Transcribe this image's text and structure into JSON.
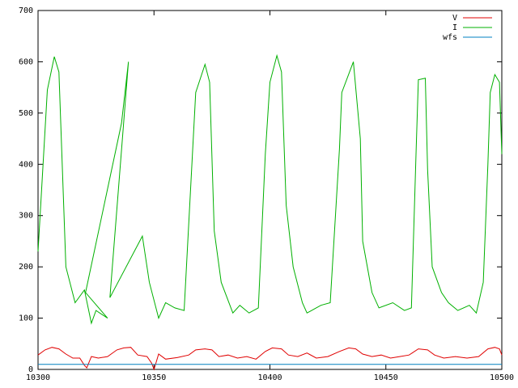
{
  "chart_data": {
    "type": "line",
    "xlim": [
      10300,
      10500
    ],
    "xticks": [
      10300,
      10350,
      10400,
      10450,
      10500
    ],
    "ylim": [
      0,
      700
    ],
    "yticks": [
      0,
      100,
      200,
      300,
      400,
      500,
      600,
      700
    ],
    "legend": "upper right",
    "series": [
      {
        "name": "V",
        "color": "#e00000",
        "x": [
          10300,
          10303,
          10306,
          10309,
          10312,
          10315,
          10318,
          10320,
          10321,
          10323,
          10326,
          10330,
          10334,
          10337,
          10340,
          10343,
          10347,
          10349,
          10350,
          10352,
          10355,
          10360,
          10365,
          10368,
          10372,
          10375,
          10378,
          10382,
          10386,
          10390,
          10394,
          10398,
          10401,
          10405,
          10408,
          10412,
          10416,
          10420,
          10425,
          10430,
          10434,
          10437,
          10440,
          10444,
          10448,
          10452,
          10456,
          10460,
          10464,
          10468,
          10471,
          10475,
          10480,
          10485,
          10490,
          10494,
          10497,
          10499,
          10500
        ],
        "values": [
          28,
          38,
          43,
          40,
          30,
          22,
          22,
          8,
          3,
          25,
          22,
          25,
          38,
          42,
          43,
          28,
          25,
          12,
          0,
          30,
          20,
          23,
          28,
          38,
          40,
          38,
          25,
          28,
          22,
          25,
          20,
          35,
          42,
          40,
          28,
          25,
          32,
          22,
          25,
          35,
          42,
          40,
          30,
          25,
          28,
          22,
          25,
          28,
          40,
          38,
          28,
          22,
          25,
          22,
          25,
          40,
          43,
          40,
          28
        ]
      },
      {
        "name": "I",
        "color": "#00b000",
        "x": [
          10300,
          10304,
          10307,
          10309,
          10312,
          10316,
          10320,
          10323,
          10325,
          10330,
          10320.5,
          10336,
          10339,
          10331,
          10345,
          10348,
          10352,
          10355,
          10359,
          10363,
          10368,
          10372,
          10374,
          10376,
          10379,
          10384,
          10387,
          10391,
          10395,
          10398,
          10400,
          10403,
          10405,
          10407,
          10410,
          10414,
          10416,
          10422,
          10426,
          10430,
          10431,
          10436,
          10439,
          10440,
          10444,
          10447,
          10453,
          10458,
          10461,
          10463,
          10464,
          10467,
          10468,
          10470,
          10474,
          10477,
          10481,
          10486,
          10489,
          10492,
          10494,
          10495,
          10497,
          10499,
          10500
        ],
        "values": [
          230,
          545,
          610,
          580,
          200,
          130,
          155,
          90,
          115,
          100,
          150,
          480,
          600,
          140,
          260,
          170,
          100,
          130,
          120,
          115,
          540,
          595,
          560,
          270,
          170,
          110,
          125,
          110,
          120,
          420,
          560,
          612,
          580,
          320,
          200,
          130,
          110,
          125,
          130,
          430,
          540,
          600,
          450,
          250,
          150,
          120,
          130,
          115,
          120,
          420,
          565,
          568,
          390,
          200,
          150,
          130,
          115,
          125,
          110,
          170,
          400,
          540,
          575,
          560,
          420
        ]
      },
      {
        "name": "wfs",
        "color": "#0080c0",
        "x": [
          10300,
          10500
        ],
        "values": [
          10,
          10
        ]
      }
    ]
  }
}
